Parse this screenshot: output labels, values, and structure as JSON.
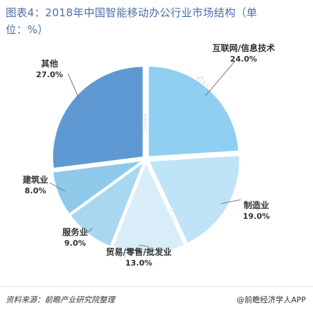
{
  "title": "图表4：2018年中国智能移动办公行业市场结构（单位：%）",
  "source": "资料来源：前瞻产业研究院整理",
  "brand": "@前瞻经济学人APP",
  "watermark": "前瞻产业研究院",
  "chart_data": {
    "type": "pie",
    "title": "图表4：2018年中国智能移动办公行业市场结构（单位：%）",
    "unit": "%",
    "slices": [
      {
        "name": "互联网/信息技术",
        "value": 24.0,
        "label": "24.0%",
        "color": "#8ecff2"
      },
      {
        "name": "制造业",
        "value": 19.0,
        "label": "19.0%",
        "color": "#bfe3f7"
      },
      {
        "name": "贸易/零售/批发业",
        "value": 13.0,
        "label": "13.0%",
        "color": "#d9edf8"
      },
      {
        "name": "服务业",
        "value": 9.0,
        "label": "9.0%",
        "color": "#a8d8ef"
      },
      {
        "name": "建筑业",
        "value": 8.0,
        "label": "8.0%",
        "color": "#8fc9ea"
      },
      {
        "name": "其他",
        "value": 27.0,
        "label": "27.0%",
        "color": "#5f99d3"
      }
    ]
  }
}
